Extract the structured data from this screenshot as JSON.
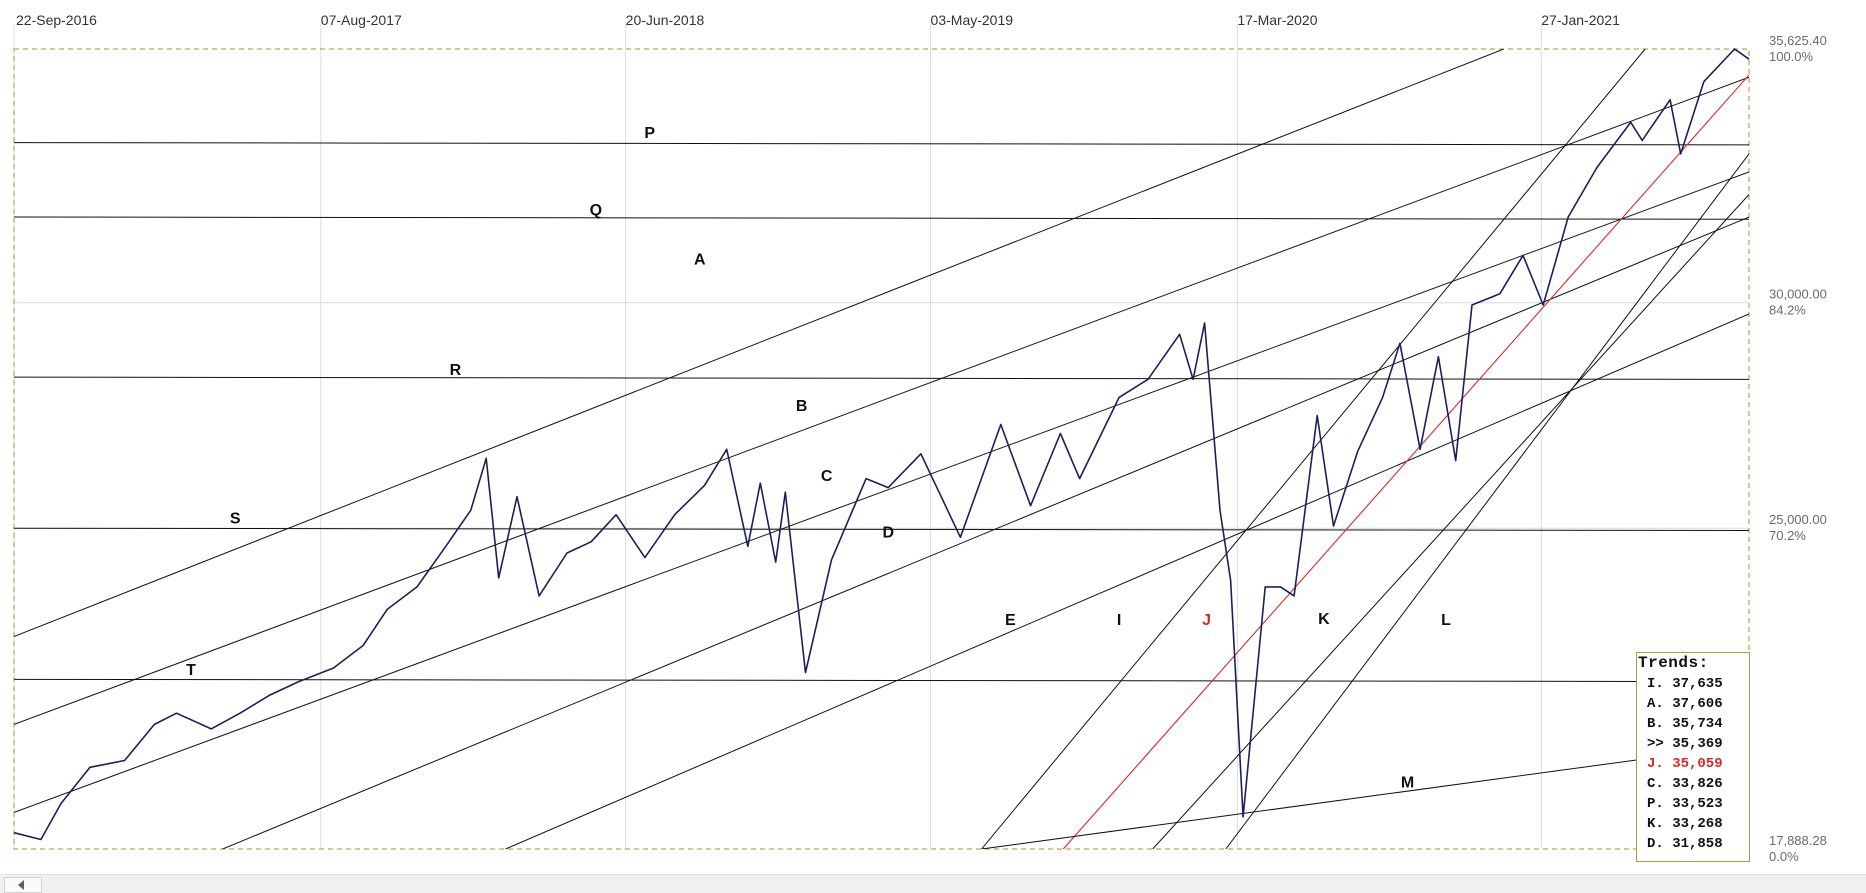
{
  "chart_data": {
    "type": "line",
    "title": "",
    "xlabel": "",
    "ylabel": "",
    "x_ticks": [
      "22-Sep-2016",
      "07-Aug-2017",
      "20-Jun-2018",
      "03-May-2019",
      "17-Mar-2020",
      "27-Jan-2021"
    ],
    "price_axis": [
      {
        "price": "35,625.40",
        "pct": "100.0%"
      },
      {
        "price": "30,000.00",
        "pct": "84.2%"
      },
      {
        "price": "25,000.00",
        "pct": "70.2%"
      },
      {
        "price": "17,888.28",
        "pct": "0.0%"
      }
    ],
    "ylim": [
      17888.28,
      35625.4
    ],
    "xlim": [
      "2016-09-22",
      "2021-08-31"
    ],
    "grid": true,
    "series_color": "#1c1f5c",
    "series": [
      {
        "values": [
          [
            "2016-09-22",
            18250
          ],
          [
            "2016-10-20",
            18100
          ],
          [
            "2016-11-10",
            18900
          ],
          [
            "2016-12-10",
            19700
          ],
          [
            "2017-01-15",
            19850
          ],
          [
            "2017-02-15",
            20650
          ],
          [
            "2017-03-10",
            20900
          ],
          [
            "2017-04-15",
            20550
          ],
          [
            "2017-05-15",
            20900
          ],
          [
            "2017-06-15",
            21300
          ],
          [
            "2017-07-15",
            21600
          ],
          [
            "2017-08-20",
            21900
          ],
          [
            "2017-09-20",
            22400
          ],
          [
            "2017-10-15",
            23200
          ],
          [
            "2017-11-15",
            23700
          ],
          [
            "2017-12-15",
            24600
          ],
          [
            "2018-01-10",
            25400
          ],
          [
            "2018-01-26",
            26550
          ],
          [
            "2018-02-08",
            23900
          ],
          [
            "2018-02-27",
            25700
          ],
          [
            "2018-03-22",
            23500
          ],
          [
            "2018-04-20",
            24450
          ],
          [
            "2018-05-15",
            24700
          ],
          [
            "2018-06-10",
            25300
          ],
          [
            "2018-07-10",
            24350
          ],
          [
            "2018-08-10",
            25300
          ],
          [
            "2018-09-10",
            25950
          ],
          [
            "2018-10-03",
            26750
          ],
          [
            "2018-10-25",
            24600
          ],
          [
            "2018-11-07",
            26000
          ],
          [
            "2018-11-23",
            24250
          ],
          [
            "2018-12-03",
            25800
          ],
          [
            "2018-12-24",
            21800
          ],
          [
            "2019-01-20",
            24300
          ],
          [
            "2019-02-25",
            26100
          ],
          [
            "2019-03-20",
            25900
          ],
          [
            "2019-04-23",
            26650
          ],
          [
            "2019-06-03",
            24800
          ],
          [
            "2019-07-15",
            27300
          ],
          [
            "2019-08-15",
            25500
          ],
          [
            "2019-09-15",
            27100
          ],
          [
            "2019-10-05",
            26100
          ],
          [
            "2019-11-15",
            27900
          ],
          [
            "2019-12-15",
            28300
          ],
          [
            "2020-01-17",
            29300
          ],
          [
            "2020-01-31",
            28300
          ],
          [
            "2020-02-12",
            29550
          ],
          [
            "2020-02-28",
            25400
          ],
          [
            "2020-03-10",
            23850
          ],
          [
            "2020-03-23",
            18600
          ],
          [
            "2020-04-15",
            23700
          ],
          [
            "2020-05-01",
            23700
          ],
          [
            "2020-05-15",
            23500
          ],
          [
            "2020-06-08",
            27500
          ],
          [
            "2020-06-25",
            25050
          ],
          [
            "2020-07-20",
            26700
          ],
          [
            "2020-08-15",
            27900
          ],
          [
            "2020-09-02",
            29100
          ],
          [
            "2020-09-23",
            26750
          ],
          [
            "2020-10-12",
            28800
          ],
          [
            "2020-10-30",
            26500
          ],
          [
            "2020-11-16",
            29950
          ],
          [
            "2020-12-15",
            30200
          ],
          [
            "2021-01-08",
            31050
          ],
          [
            "2021-01-29",
            29950
          ],
          [
            "2021-02-24",
            31900
          ],
          [
            "2021-03-26",
            33000
          ],
          [
            "2021-04-30",
            34000
          ],
          [
            "2021-05-12",
            33600
          ],
          [
            "2021-06-10",
            34500
          ],
          [
            "2021-06-21",
            33300
          ],
          [
            "2021-07-15",
            34900
          ],
          [
            "2021-08-16",
            35625
          ],
          [
            "2021-08-31",
            35400
          ]
        ]
      }
    ],
    "lines": [
      {
        "label": "P",
        "color": "#111111",
        "points": [
          [
            "2016-09-22",
            33550
          ],
          [
            "2021-08-31",
            33500
          ]
        ]
      },
      {
        "label": "Q",
        "color": "#111111",
        "points": [
          [
            "2016-09-22",
            31900
          ],
          [
            "2021-08-31",
            31850
          ]
        ]
      },
      {
        "label": "R",
        "color": "#111111",
        "points": [
          [
            "2016-09-22",
            28350
          ],
          [
            "2021-08-31",
            28300
          ]
        ]
      },
      {
        "label": "S",
        "color": "#111111",
        "points": [
          [
            "2016-09-22",
            25000
          ],
          [
            "2021-08-31",
            24950
          ]
        ]
      },
      {
        "label": "T",
        "color": "#111111",
        "points": [
          [
            "2016-09-22",
            21650
          ],
          [
            "2021-08-31",
            21600
          ]
        ]
      },
      {
        "label": "A",
        "color": "#111111",
        "points": [
          [
            "2016-09-22",
            22600
          ],
          [
            "2020-12-19",
            35625
          ]
        ]
      },
      {
        "label": "B",
        "color": "#111111",
        "points": [
          [
            "2016-09-22",
            20650
          ],
          [
            "2021-08-31",
            35000
          ]
        ]
      },
      {
        "label": "C",
        "color": "#111111",
        "points": [
          [
            "2016-09-22",
            18700
          ],
          [
            "2021-08-31",
            32900
          ]
        ]
      },
      {
        "label": "D",
        "color": "#111111",
        "points": [
          [
            "2017-04-27",
            17888
          ],
          [
            "2021-08-31",
            31900
          ]
        ]
      },
      {
        "label": "E",
        "color": "#111111",
        "points": [
          [
            "2018-02-15",
            17888
          ],
          [
            "2021-08-31",
            29750
          ]
        ]
      },
      {
        "label": "I",
        "color": "#111111",
        "points": [
          [
            "2019-06-25",
            17888
          ],
          [
            "2021-05-15",
            35625
          ]
        ]
      },
      {
        "label": "J",
        "color": "#d42a2a",
        "points": [
          [
            "2019-09-18",
            17888
          ],
          [
            "2021-08-31",
            35050
          ]
        ]
      },
      {
        "label": "K",
        "color": "#111111",
        "points": [
          [
            "2019-12-20",
            17888
          ],
          [
            "2021-08-31",
            32400
          ]
        ]
      },
      {
        "label": "L",
        "color": "#111111",
        "points": [
          [
            "2020-03-05",
            17888
          ],
          [
            "2021-08-31",
            33300
          ]
        ]
      },
      {
        "label": "M",
        "color": "#111111",
        "points": [
          [
            "2019-06-25",
            17888
          ],
          [
            "2021-08-31",
            20200
          ]
        ]
      }
    ],
    "line_labels": [
      {
        "text": "P",
        "at": [
          "2018-07-15",
          33650
        ],
        "color": "#111111"
      },
      {
        "text": "Q",
        "at": [
          "2018-05-20",
          31950
        ],
        "color": "#111111"
      },
      {
        "text": "A",
        "at": [
          "2018-09-05",
          30850
        ],
        "color": "#111111"
      },
      {
        "text": "R",
        "at": [
          "2017-12-25",
          28400
        ],
        "color": "#111111"
      },
      {
        "text": "B",
        "at": [
          "2018-12-20",
          27600
        ],
        "color": "#111111"
      },
      {
        "text": "C",
        "at": [
          "2019-01-15",
          26050
        ],
        "color": "#111111"
      },
      {
        "text": "S",
        "at": [
          "2017-05-10",
          25100
        ],
        "color": "#111111"
      },
      {
        "text": "D",
        "at": [
          "2019-03-20",
          24800
        ],
        "color": "#111111"
      },
      {
        "text": "E",
        "at": [
          "2019-07-25",
          22850
        ],
        "color": "#111111"
      },
      {
        "text": "I",
        "at": [
          "2019-11-15",
          22850
        ],
        "color": "#111111"
      },
      {
        "text": "J",
        "at": [
          "2020-02-14",
          22850
        ],
        "color": "#d42a2a"
      },
      {
        "text": "K",
        "at": [
          "2020-06-15",
          22880
        ],
        "color": "#111111"
      },
      {
        "text": "L",
        "at": [
          "2020-10-20",
          22850
        ],
        "color": "#111111"
      },
      {
        "text": "T",
        "at": [
          "2017-03-25",
          21750
        ],
        "color": "#111111"
      },
      {
        "text": "M",
        "at": [
          "2020-09-10",
          19250
        ],
        "color": "#111111"
      }
    ]
  },
  "trends": {
    "title": "Trends:",
    "rows": [
      {
        "text": "I. 37,635",
        "color": "#111111"
      },
      {
        "text": "A. 37,606",
        "color": "#111111"
      },
      {
        "text": "B. 35,734",
        "color": "#111111"
      },
      {
        "text": ">> 35,369",
        "color": "#111111"
      },
      {
        "text": "J. 35,059",
        "color": "#d42a2a"
      },
      {
        "text": "C. 33,826",
        "color": "#111111"
      },
      {
        "text": "P. 33,523",
        "color": "#111111"
      },
      {
        "text": "K. 33,268",
        "color": "#111111"
      },
      {
        "text": "D. 31,858",
        "color": "#111111"
      }
    ]
  },
  "scrollbar": {
    "left_icon": "chevron-left-icon"
  }
}
